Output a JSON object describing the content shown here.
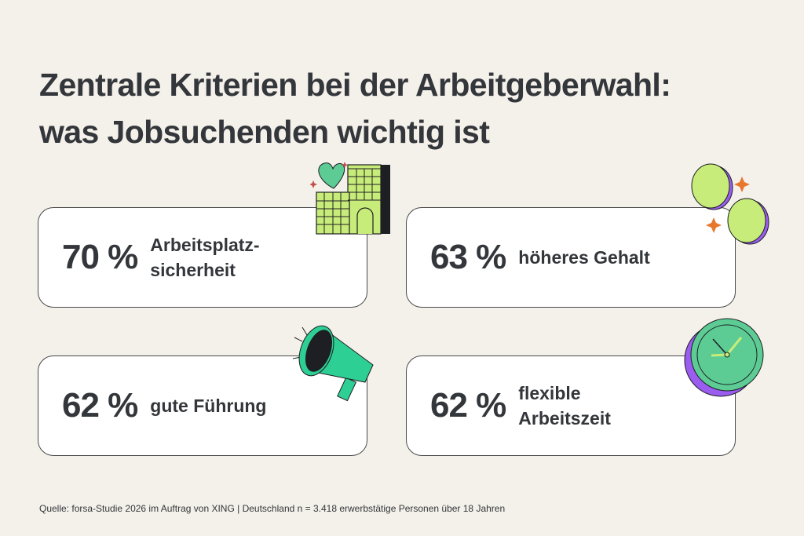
{
  "title": {
    "line1": "Zentrale Kriterien bei der Arbeitgeberwahl:",
    "line2": "was Jobsuchenden wichtig ist"
  },
  "cards": [
    {
      "percent": "70 %",
      "label": "Arbeitsplatz-\nsicherheit",
      "icon": "building-heart-icon"
    },
    {
      "percent": "63 %",
      "label": "höheres Gehalt",
      "icon": "coins-icon"
    },
    {
      "percent": "62 %",
      "label": "gute Führung",
      "icon": "megaphone-icon"
    },
    {
      "percent": "62 %",
      "label": "flexible\nArbeitszeit",
      "icon": "clock-icon"
    }
  ],
  "colors": {
    "background": "#f4f0ea",
    "lime": "#c8ec7a",
    "green": "#2ecf94",
    "purple": "#9b5cf0",
    "text": "#33363a"
  },
  "source": "Quelle: forsa-Studie 2026 im Auftrag von XING | Deutschland n = 3.418 erwerbstätige Personen über 18 Jahren"
}
